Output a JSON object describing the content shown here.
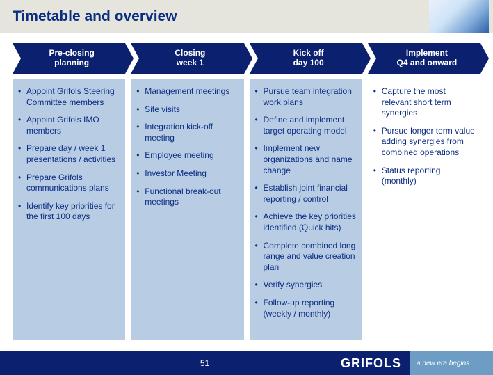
{
  "title": "Timetable and overview",
  "colors": {
    "titlebar_bg": "#e6e5dd",
    "title_text": "#0b2e82",
    "arrow_bg": "#0c2070",
    "arrow_text": "#ffffff",
    "box_bg": "#b8cce4",
    "bullet_text": "#0b2e82",
    "footer_main": "#0c2070",
    "footer_tag": "#6d9dc5"
  },
  "columns": [
    {
      "heading_line1": "Pre-closing",
      "heading_line2": "planning",
      "items": [
        "Appoint Grifols Steering Committee members",
        "Appoint Grifols IMO members",
        "Prepare day / week 1 presentations / activities",
        "Prepare Grifols communications plans",
        "Identify key priorities for the first 100 days"
      ]
    },
    {
      "heading_line1": "Closing",
      "heading_line2": "week 1",
      "items": [
        "Management meetings",
        "Site visits",
        "Integration kick-off meeting",
        "Employee meeting",
        "Investor Meeting",
        "Functional break-out meetings"
      ]
    },
    {
      "heading_line1": "Kick off",
      "heading_line2": "day 100",
      "items": [
        "Pursue team integration work plans",
        "Define and implement target operating model",
        "Implement new organizations and name change",
        "Establish joint financial reporting / control",
        "Achieve the key priorities identified (Quick hits)",
        "Complete combined long range and value creation plan",
        "Verify synergies",
        "Follow-up reporting (weekly / monthly)"
      ]
    },
    {
      "heading_line1": "Implement",
      "heading_line2": "Q4 and onward",
      "items": [
        "Capture the most relevant short term synergies",
        "Pursue longer term value adding synergies from combined operations",
        "Status reporting (monthly)"
      ]
    }
  ],
  "footer": {
    "page": "51",
    "brand": "GRIFOLS",
    "tagline": "a new era begins"
  }
}
